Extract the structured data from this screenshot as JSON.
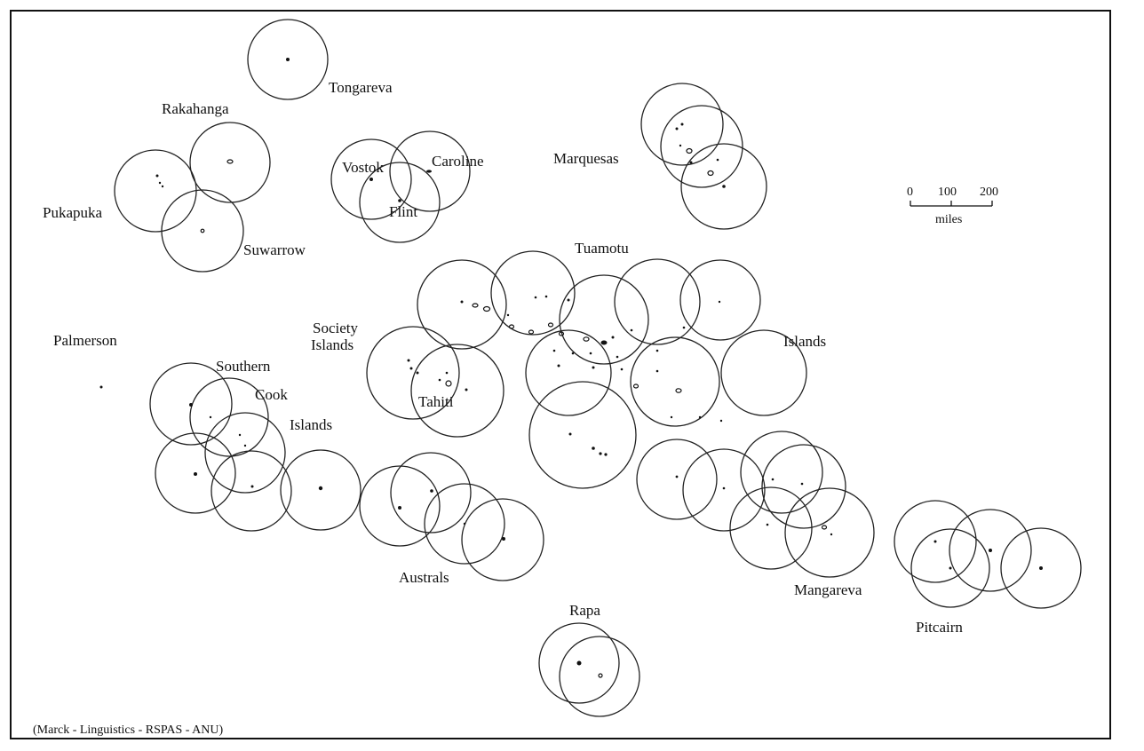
{
  "map": {
    "labels": {
      "tongareva": "Tongareva",
      "rakahanga": "Rakahanga",
      "pukapuka": "Pukapuka",
      "suwarrow": "Suwarrow",
      "vostok": "Vostok",
      "caroline": "Caroline",
      "flint": "Flint",
      "marquesas": "Marquesas",
      "tuamotu": "Tuamotu",
      "islands_tuamotu": "Islands",
      "society": "Society",
      "islands_society": "Islands",
      "tahiti": "Tahiti",
      "palmerson": "Palmerson",
      "southern": "Southern",
      "cook": "Cook",
      "islands_cook": "Islands",
      "australs": "Australs",
      "rapa": "Rapa",
      "mangareva": "Mangareva",
      "pitcairn": "Pitcairn"
    },
    "scale": {
      "tick_0": "0",
      "tick_100": "100",
      "tick_200": "200",
      "unit": "miles"
    },
    "credit": "(Marck - Linguistics - RSPAS - ANU)"
  }
}
